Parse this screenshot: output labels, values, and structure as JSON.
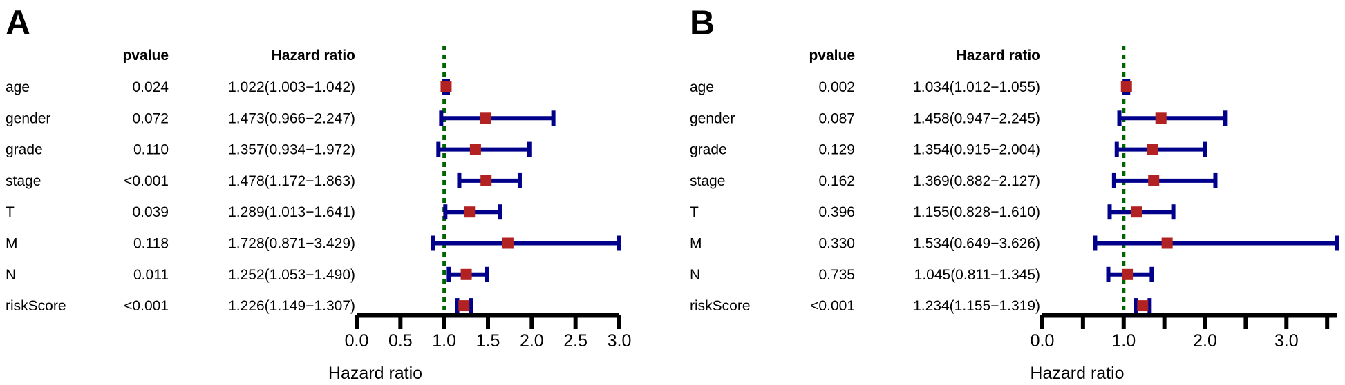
{
  "colors": {
    "ci": "#00008B",
    "point": "#B22222",
    "refline": "#006400",
    "axis": "#000000"
  },
  "chart_data": [
    {
      "type": "forest",
      "panel": "A",
      "col_pvalue": "pvalue",
      "col_hr": "Hazard ratio",
      "xlabel": "Hazard ratio",
      "xlim": [
        0,
        3.0
      ],
      "ticks": [
        0,
        0.5,
        1.0,
        1.5,
        2.0,
        2.5,
        3.0
      ],
      "tick_labels": [
        "0.0",
        "0.5",
        "1.0",
        "1.5",
        "2.0",
        "2.5",
        "3.0"
      ],
      "reference": 1.0,
      "rows": [
        {
          "label": "age",
          "pvalue": "0.024",
          "hr_text": "1.022(1.003−1.042)",
          "hr": 1.022,
          "lo": 1.003,
          "hi": 1.042
        },
        {
          "label": "gender",
          "pvalue": "0.072",
          "hr_text": "1.473(0.966−2.247)",
          "hr": 1.473,
          "lo": 0.966,
          "hi": 2.247
        },
        {
          "label": "grade",
          "pvalue": "0.110",
          "hr_text": "1.357(0.934−1.972)",
          "hr": 1.357,
          "lo": 0.934,
          "hi": 1.972
        },
        {
          "label": "stage",
          "pvalue": "<0.001",
          "hr_text": "1.478(1.172−1.863)",
          "hr": 1.478,
          "lo": 1.172,
          "hi": 1.863
        },
        {
          "label": "T",
          "pvalue": "0.039",
          "hr_text": "1.289(1.013−1.641)",
          "hr": 1.289,
          "lo": 1.013,
          "hi": 1.641
        },
        {
          "label": "M",
          "pvalue": "0.118",
          "hr_text": "1.728(0.871−3.429)",
          "hr": 1.728,
          "lo": 0.871,
          "hi": 3.429
        },
        {
          "label": "N",
          "pvalue": "0.011",
          "hr_text": "1.252(1.053−1.490)",
          "hr": 1.252,
          "lo": 1.053,
          "hi": 1.49
        },
        {
          "label": "riskScore",
          "pvalue": "<0.001",
          "hr_text": "1.226(1.149−1.307)",
          "hr": 1.226,
          "lo": 1.149,
          "hi": 1.307
        }
      ]
    },
    {
      "type": "forest",
      "panel": "B",
      "col_pvalue": "pvalue",
      "col_hr": "Hazard ratio",
      "xlabel": "Hazard ratio",
      "xlim": [
        0,
        3.626
      ],
      "ticks": [
        0,
        0.5,
        1.0,
        1.5,
        2.0,
        2.5,
        3.0,
        3.5
      ],
      "tick_labels": [
        "0.0",
        "",
        "1.0",
        "",
        "2.0",
        "",
        "3.0",
        ""
      ],
      "reference": 1.0,
      "rows": [
        {
          "label": "age",
          "pvalue": "0.002",
          "hr_text": "1.034(1.012−1.055)",
          "hr": 1.034,
          "lo": 1.012,
          "hi": 1.055
        },
        {
          "label": "gender",
          "pvalue": "0.087",
          "hr_text": "1.458(0.947−2.245)",
          "hr": 1.458,
          "lo": 0.947,
          "hi": 2.245
        },
        {
          "label": "grade",
          "pvalue": "0.129",
          "hr_text": "1.354(0.915−2.004)",
          "hr": 1.354,
          "lo": 0.915,
          "hi": 2.004
        },
        {
          "label": "stage",
          "pvalue": "0.162",
          "hr_text": "1.369(0.882−2.127)",
          "hr": 1.369,
          "lo": 0.882,
          "hi": 2.127
        },
        {
          "label": "T",
          "pvalue": "0.396",
          "hr_text": "1.155(0.828−1.610)",
          "hr": 1.155,
          "lo": 0.828,
          "hi": 1.61
        },
        {
          "label": "M",
          "pvalue": "0.330",
          "hr_text": "1.534(0.649−3.626)",
          "hr": 1.534,
          "lo": 0.649,
          "hi": 3.626
        },
        {
          "label": "N",
          "pvalue": "0.735",
          "hr_text": "1.045(0.811−1.345)",
          "hr": 1.045,
          "lo": 0.811,
          "hi": 1.345
        },
        {
          "label": "riskScore",
          "pvalue": "<0.001",
          "hr_text": "1.234(1.155−1.319)",
          "hr": 1.234,
          "lo": 1.155,
          "hi": 1.319
        }
      ]
    }
  ]
}
